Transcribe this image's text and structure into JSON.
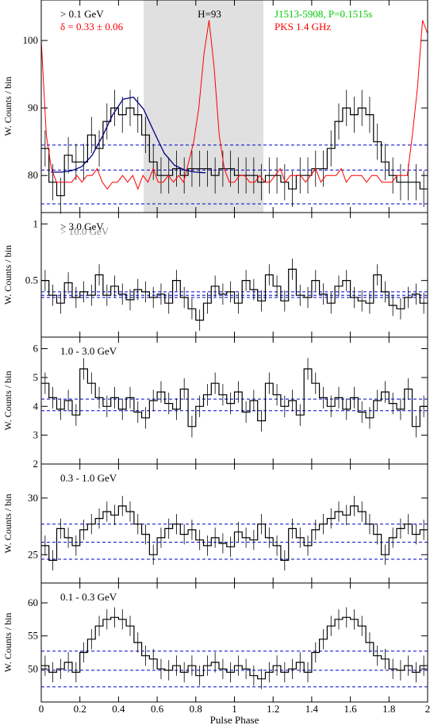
{
  "figure": {
    "xlabel": "Pulse Phase"
  },
  "chart_data": [
    {
      "type": "line",
      "ylabel": "W. Counts / bin",
      "xlim": [
        0,
        2
      ],
      "ylim": [
        74.5,
        106
      ],
      "yticks": [
        80,
        90,
        100
      ],
      "xticks": [
        "0",
        "0.2",
        "0.4",
        "0.6",
        "0.8",
        "1",
        "1.2",
        "1.4",
        "1.6",
        "1.8",
        "2"
      ],
      "shaded_region": [
        0.53,
        1.15
      ],
      "labels": {
        "energy": "> 0.1 GeV",
        "delta": "δ = 0.33 ± 0.06",
        "h": "H=93",
        "pulsar": "J1513-5908, P=0.1515s",
        "radio": "PKS 1.4 GHz"
      },
      "colors": {
        "energy": "#000000",
        "delta": "#ff0000",
        "pulsar": "#00cc00",
        "radio": "#ff0000"
      },
      "hlines": [
        84.5,
        80.8,
        75.8
      ],
      "series": [
        {
          "kind": "histogram",
          "color": "#000000",
          "values": [
            84,
            79,
            77,
            83,
            82,
            82,
            86,
            84,
            88,
            90,
            89,
            90,
            89,
            86,
            82,
            80,
            80,
            81,
            80,
            81,
            81,
            81,
            80,
            81,
            81,
            80,
            80,
            80,
            79,
            80,
            80,
            79,
            78,
            80,
            80,
            81,
            81,
            84,
            88,
            90,
            89,
            90,
            89,
            85,
            82,
            80,
            79,
            79,
            79,
            78
          ]
        },
        {
          "kind": "radio",
          "color": "#ff0000",
          "values": [
            100,
            86,
            81,
            79,
            79,
            79,
            79,
            80,
            79,
            80,
            80,
            81,
            79,
            78,
            79,
            79,
            80,
            79,
            80,
            78,
            80,
            79,
            81,
            79,
            79,
            80,
            79,
            80,
            79,
            82,
            85,
            90,
            98,
            103,
            96,
            86,
            81,
            79,
            79,
            80,
            80,
            79,
            79,
            80,
            79,
            79,
            80,
            81,
            79,
            80,
            80,
            80,
            79,
            80,
            81,
            79,
            80,
            80,
            80,
            81,
            79,
            80,
            80,
            80,
            79,
            80,
            80,
            79,
            79,
            79,
            80,
            80,
            80,
            86,
            93,
            103,
            101
          ]
        },
        {
          "kind": "fit",
          "color": "#000080",
          "values": [
            80.5,
            80.5,
            80.7,
            81.3,
            83,
            85.8,
            89,
            91.3,
            91.6,
            89.8,
            86.5,
            83.3,
            81.5,
            80.8,
            80.5,
            80.4
          ]
        }
      ]
    },
    {
      "type": "line",
      "ylabel": "W. Counts / bin",
      "ylim": [
        0,
        1.1
      ],
      "yticks": [
        0.5,
        1
      ],
      "labels": {
        "energy": "> 3.0 GeV",
        "energy2": "> 10.0 GeV"
      },
      "colors": {
        "energy": "#000000",
        "energy2": "#888888"
      },
      "hlines": [
        0.4,
        0.37,
        0.35
      ],
      "series": [
        {
          "kind": "histogram",
          "color": "#000000",
          "values": [
            0.5,
            0.37,
            0.3,
            0.48,
            0.35,
            0.4,
            0.37,
            0.55,
            0.37,
            0.45,
            0.38,
            0.33,
            0.42,
            0.4,
            0.35,
            0.38,
            0.3,
            0.5,
            0.35,
            0.25,
            0.15,
            0.3,
            0.45,
            0.38,
            0.4,
            0.3,
            0.5,
            0.42,
            0.32,
            0.55,
            0.45,
            0.32,
            0.6,
            0.37,
            0.35,
            0.5,
            0.38,
            0.3,
            0.45,
            0.5,
            0.35,
            0.32,
            0.3,
            0.55,
            0.4,
            0.28,
            0.25,
            0.35,
            0.38,
            0.3
          ]
        }
      ]
    },
    {
      "type": "line",
      "ylabel": "W. Counts / bin",
      "ylim": [
        2,
        6.4
      ],
      "yticks": [
        2,
        3,
        4,
        5,
        6
      ],
      "labels": {
        "energy": "1.0 - 3.0 GeV"
      },
      "hlines": [
        4.25,
        3.85
      ],
      "series": [
        {
          "kind": "histogram",
          "color": "#000000",
          "values": [
            4.8,
            4.3,
            3.9,
            4.2,
            3.7,
            5.3,
            4.8,
            4.3,
            4.0,
            4.3,
            3.9,
            4.3,
            3.8,
            3.6,
            4.2,
            4.5,
            4.1,
            3.9,
            4.6,
            3.3,
            4.0,
            4.4,
            4.8,
            4.4,
            4.1,
            4.5,
            3.8,
            4.2,
            3.5,
            4.8,
            4.4,
            4.0,
            4.2,
            3.7,
            5.3,
            4.8,
            4.3,
            4.0,
            4.3,
            3.9,
            4.3,
            3.8,
            3.6,
            4.2,
            4.5,
            4.1,
            3.9,
            4.6,
            3.3,
            4.0
          ]
        }
      ]
    },
    {
      "type": "line",
      "ylabel": "W. Counts / bin",
      "ylim": [
        22.5,
        33
      ],
      "yticks": [
        25,
        30
      ],
      "labels": {
        "energy": "0.3 - 1.0 GeV"
      },
      "hlines": [
        27.7,
        26.1,
        24.6
      ],
      "series": [
        {
          "kind": "histogram",
          "color": "#000000",
          "values": [
            25.8,
            24.5,
            27.3,
            26.5,
            25.8,
            27.2,
            27.7,
            28.2,
            28.8,
            28.5,
            29.3,
            28.8,
            27.7,
            26.8,
            25.0,
            26.5,
            27.3,
            27.7,
            26.8,
            27.2,
            26.3,
            25.8,
            26.5,
            26.0,
            25.7,
            27.0,
            26.5,
            26.3,
            27.7,
            26.5,
            25.8,
            24.5,
            27.3,
            26.5,
            25.8,
            27.2,
            27.7,
            28.2,
            28.8,
            28.5,
            29.3,
            28.8,
            27.7,
            26.8,
            25.0,
            26.5,
            27.3,
            27.7,
            26.8,
            27.2
          ]
        }
      ]
    },
    {
      "type": "line",
      "ylabel": "W. Counts / bin",
      "ylim": [
        45,
        63
      ],
      "yticks": [
        50,
        55,
        60
      ],
      "labels": {
        "energy": "0.1 - 0.3 GeV"
      },
      "hlines": [
        52.7,
        49.8,
        47.3
      ],
      "series": [
        {
          "kind": "histogram",
          "color": "#000000",
          "values": [
            50.5,
            49.5,
            50.0,
            51.0,
            49.5,
            52.5,
            54.5,
            56.5,
            57.5,
            57.8,
            57.5,
            56.5,
            54.0,
            52.0,
            51.5,
            50.0,
            49.8,
            50.5,
            49.5,
            50.5,
            49.0,
            50.5,
            51.0,
            50.0,
            49.5,
            50.5,
            50.0,
            49.0,
            48.5,
            49.5,
            50.5,
            49.5,
            50.0,
            51.0,
            49.5,
            52.5,
            54.5,
            56.5,
            57.5,
            57.8,
            57.5,
            56.5,
            54.0,
            52.0,
            51.5,
            50.0,
            49.8,
            50.5,
            49.5,
            50.5
          ]
        }
      ]
    }
  ]
}
